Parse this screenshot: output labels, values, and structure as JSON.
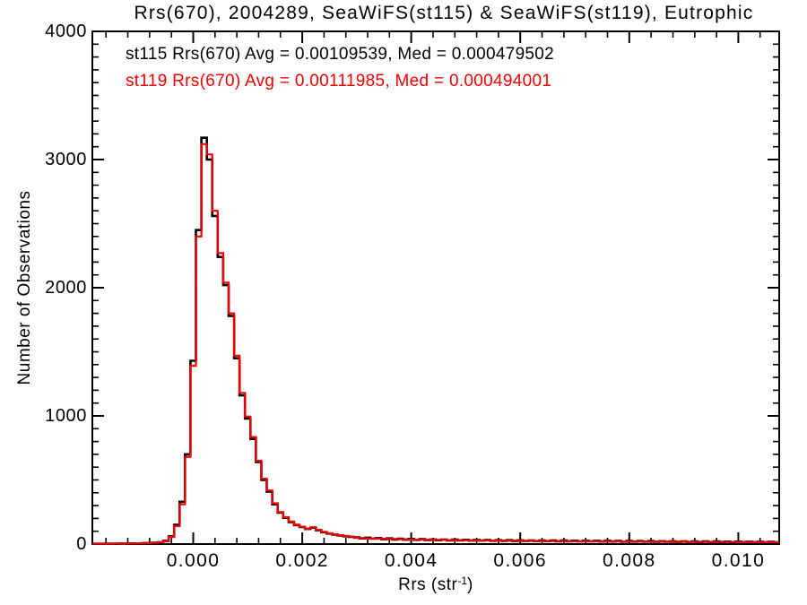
{
  "title": "Rrs(670), 2004289, SeaWiFS(st115) & SeaWiFS(st119), Eutrophic",
  "legend": {
    "entries": [
      {
        "name": "st115",
        "label": "st115 Rrs(670) Avg = 0.00109539, Med = 0.000479502",
        "color": "#000000"
      },
      {
        "name": "st119",
        "label": "st119 Rrs(670) Avg = 0.00111985, Med = 0.000494001",
        "color": "#f10000"
      }
    ]
  },
  "axes": {
    "x": {
      "label_pre": "Rrs (str",
      "label_sup": "-1",
      "label_post": ")"
    },
    "y": {
      "label": "Number of Observations"
    }
  },
  "chart_data": {
    "type": "histogram",
    "title": "Rrs(670), 2004289, SeaWiFS(st115) & SeaWiFS(st119), Eutrophic",
    "xlabel": "Rrs (str^-1)",
    "ylabel": "Number of Observations",
    "xlim": [
      -0.00185,
      0.01075
    ],
    "ylim": [
      0,
      4000
    ],
    "x_ticks": [
      0.0,
      0.002,
      0.004,
      0.006,
      0.008,
      0.01
    ],
    "x_tick_labels": [
      "0.000",
      "0.002",
      "0.004",
      "0.006",
      "0.008",
      "0.010"
    ],
    "y_ticks": [
      0,
      1000,
      2000,
      3000,
      4000
    ],
    "y_tick_labels": [
      "0",
      "1000",
      "2000",
      "3000",
      "4000"
    ],
    "x_minor_step": 0.0004,
    "y_minor_step": 100,
    "grid": false,
    "legend_position": "top-left-inside",
    "bin_start": -0.00185,
    "bin_width": 0.0001,
    "frame_color": "#000000",
    "background": "#ffffff",
    "series": [
      {
        "name": "st115",
        "color": "#000000",
        "avg": 0.00109539,
        "med": 0.000479502,
        "values": [
          2,
          2,
          3,
          3,
          3,
          4,
          4,
          5,
          5,
          6,
          8,
          10,
          14,
          25,
          60,
          150,
          330,
          700,
          1430,
          2450,
          3170,
          3000,
          2560,
          2240,
          2020,
          1780,
          1450,
          1160,
          980,
          820,
          640,
          500,
          410,
          310,
          245,
          205,
          172,
          148,
          133,
          118,
          128,
          108,
          92,
          82,
          74,
          67,
          61,
          56,
          52,
          44,
          50,
          42,
          46,
          38,
          44,
          36,
          42,
          34,
          40,
          33,
          38,
          31,
          36,
          30,
          35,
          29,
          34,
          28,
          33,
          27,
          32,
          27,
          31,
          26,
          30,
          25,
          30,
          24,
          29,
          24,
          28,
          23,
          28,
          23,
          27,
          22,
          27,
          22,
          26,
          21,
          26,
          21,
          25,
          20,
          25,
          20,
          24,
          19,
          24,
          19,
          23,
          19,
          23,
          18,
          22,
          18,
          22,
          17,
          21,
          17,
          21,
          16,
          20,
          16,
          20,
          16,
          19,
          15,
          19,
          15,
          18,
          15,
          18,
          14,
          17,
          14
        ]
      },
      {
        "name": "st119",
        "color": "#f10000",
        "avg": 0.00111985,
        "med": 0.000494001,
        "values": [
          2,
          3,
          2,
          3,
          4,
          3,
          5,
          4,
          6,
          5,
          7,
          9,
          13,
          22,
          55,
          140,
          310,
          680,
          1390,
          2400,
          3120,
          3040,
          2600,
          2270,
          2040,
          1800,
          1470,
          1180,
          995,
          835,
          650,
          510,
          418,
          318,
          250,
          210,
          176,
          151,
          136,
          121,
          131,
          111,
          95,
          84,
          76,
          69,
          63,
          58,
          48,
          46,
          44,
          43,
          42,
          41,
          40,
          39,
          38,
          37,
          36,
          35,
          34,
          34,
          33,
          32,
          32,
          31,
          31,
          30,
          30,
          29,
          29,
          28,
          28,
          27,
          27,
          26,
          26,
          26,
          25,
          25,
          25,
          24,
          24,
          24,
          23,
          23,
          23,
          22,
          22,
          22,
          22,
          21,
          21,
          21,
          21,
          20,
          20,
          20,
          20,
          19,
          19,
          19,
          19,
          19,
          18,
          18,
          18,
          18,
          18,
          17,
          17,
          17,
          17,
          17,
          16,
          16,
          16,
          16,
          16,
          15,
          15,
          15,
          15,
          15,
          14,
          14
        ]
      }
    ]
  }
}
